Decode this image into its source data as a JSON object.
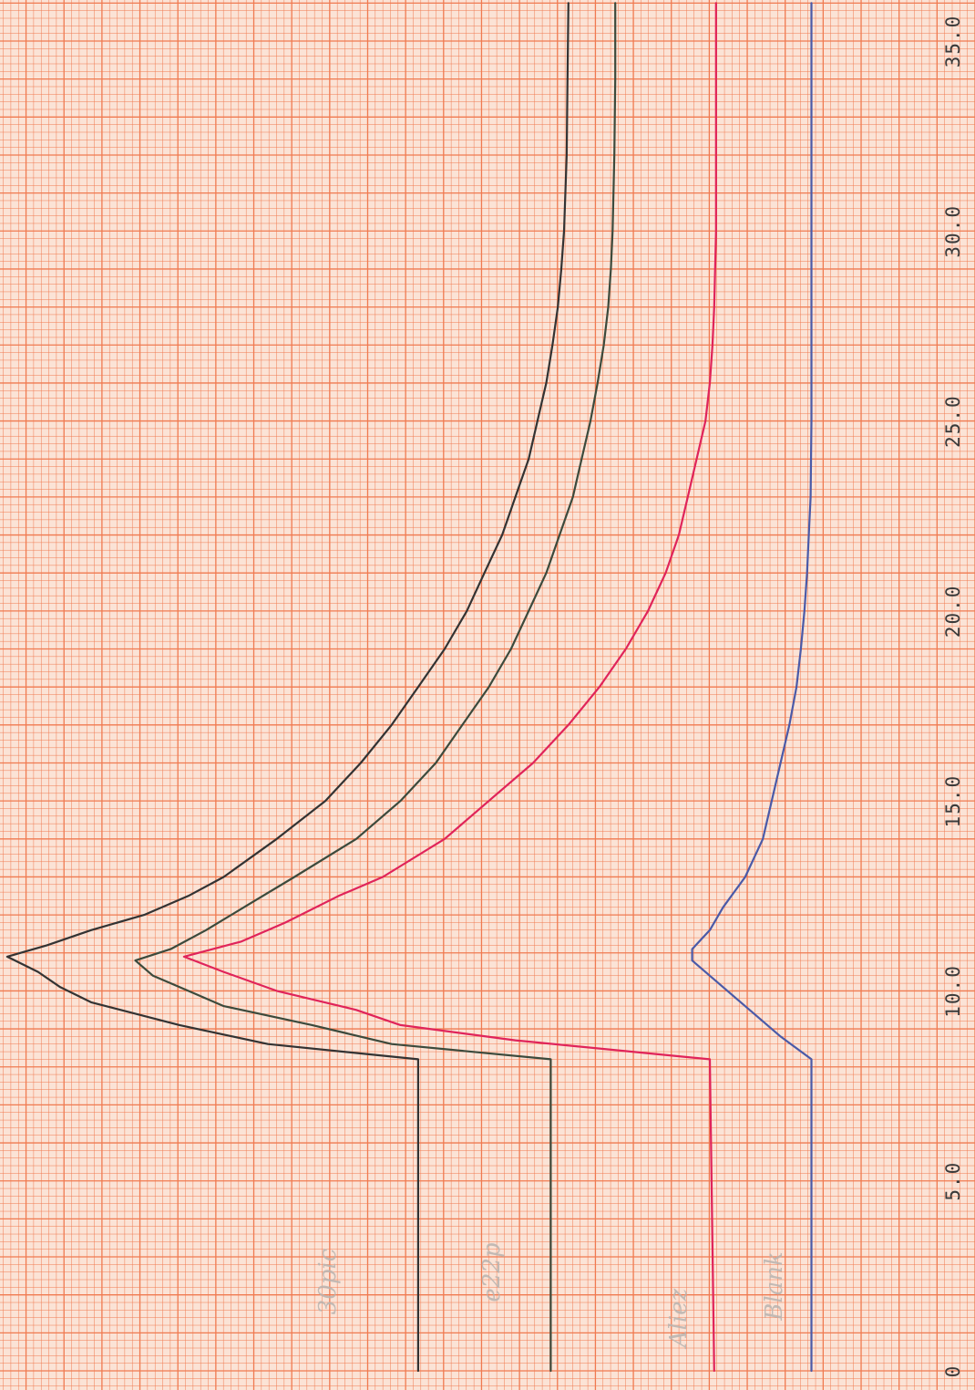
{
  "chart_data": {
    "type": "line",
    "title": "",
    "xlabel": "",
    "ylabel": "",
    "orientation": "rotated-90 (time axis runs bottom to top, ticks printed along right edge)",
    "xlim": [
      0,
      36
    ],
    "ylim": [
      0,
      11
    ],
    "grid": true,
    "grid_color": "#f07a50",
    "paper_color": "#fbe3d6",
    "tick_values": [
      0,
      5,
      10,
      15,
      20,
      25,
      30,
      35
    ],
    "tick_labels": [
      "0",
      "5.0",
      "10.0",
      "15.0",
      "20.0",
      "25.0",
      "30.0",
      "35.0"
    ],
    "series": [
      {
        "name": "30pic",
        "color": "#333333",
        "points": [
          [
            0,
            6.3
          ],
          [
            5,
            6.3
          ],
          [
            8.2,
            6.3
          ],
          [
            8.6,
            8.0
          ],
          [
            9.1,
            9.0
          ],
          [
            9.7,
            10.0
          ],
          [
            10.1,
            10.35
          ],
          [
            10.5,
            10.6
          ],
          [
            10.9,
            10.95
          ],
          [
            11.2,
            10.5
          ],
          [
            11.6,
            10.0
          ],
          [
            12.0,
            9.4
          ],
          [
            12.5,
            8.9
          ],
          [
            13,
            8.5
          ],
          [
            14,
            7.9
          ],
          [
            15,
            7.35
          ],
          [
            16,
            6.95
          ],
          [
            17,
            6.6
          ],
          [
            18,
            6.3
          ],
          [
            19,
            6.0
          ],
          [
            20,
            5.75
          ],
          [
            21,
            5.55
          ],
          [
            22,
            5.35
          ],
          [
            23,
            5.2
          ],
          [
            24,
            5.05
          ],
          [
            25,
            4.95
          ],
          [
            26,
            4.85
          ],
          [
            27,
            4.78
          ],
          [
            28,
            4.72
          ],
          [
            29,
            4.68
          ],
          [
            30,
            4.65
          ],
          [
            32,
            4.62
          ],
          [
            34,
            4.61
          ],
          [
            36,
            4.6
          ]
        ]
      },
      {
        "name": "e22p",
        "color": "#3c4a3c",
        "points": [
          [
            0,
            4.8
          ],
          [
            5,
            4.8
          ],
          [
            8.2,
            4.8
          ],
          [
            8.6,
            6.6
          ],
          [
            9.1,
            7.5
          ],
          [
            9.6,
            8.5
          ],
          [
            10.0,
            8.9
          ],
          [
            10.4,
            9.3
          ],
          [
            10.8,
            9.5
          ],
          [
            11.1,
            9.1
          ],
          [
            11.6,
            8.7
          ],
          [
            12.3,
            8.2
          ],
          [
            13,
            7.7
          ],
          [
            14,
            7.0
          ],
          [
            15,
            6.5
          ],
          [
            16,
            6.1
          ],
          [
            17,
            5.8
          ],
          [
            18,
            5.5
          ],
          [
            19,
            5.25
          ],
          [
            20,
            5.05
          ],
          [
            21,
            4.85
          ],
          [
            22,
            4.7
          ],
          [
            23,
            4.55
          ],
          [
            24,
            4.45
          ],
          [
            25,
            4.35
          ],
          [
            26,
            4.27
          ],
          [
            27,
            4.2
          ],
          [
            28,
            4.15
          ],
          [
            29,
            4.12
          ],
          [
            30,
            4.1
          ],
          [
            32,
            4.08
          ],
          [
            34,
            4.07
          ],
          [
            36,
            4.07
          ]
        ]
      },
      {
        "name": "Aliez",
        "color": "#e0245a",
        "points": [
          [
            0,
            2.95
          ],
          [
            5,
            2.98
          ],
          [
            8.2,
            3.0
          ],
          [
            8.7,
            5.2
          ],
          [
            9.1,
            6.5
          ],
          [
            9.5,
            7.0
          ],
          [
            10.0,
            7.9
          ],
          [
            10.5,
            8.5
          ],
          [
            10.9,
            8.95
          ],
          [
            11.3,
            8.3
          ],
          [
            11.8,
            7.8
          ],
          [
            12.5,
            7.2
          ],
          [
            13,
            6.7
          ],
          [
            14,
            6.0
          ],
          [
            15,
            5.5
          ],
          [
            16,
            5.0
          ],
          [
            17,
            4.6
          ],
          [
            18,
            4.25
          ],
          [
            19,
            3.95
          ],
          [
            20,
            3.7
          ],
          [
            21,
            3.5
          ],
          [
            22,
            3.35
          ],
          [
            23,
            3.25
          ],
          [
            24,
            3.15
          ],
          [
            25,
            3.05
          ],
          [
            26,
            3.0
          ],
          [
            27,
            2.97
          ],
          [
            28,
            2.95
          ],
          [
            30,
            2.93
          ],
          [
            32,
            2.93
          ],
          [
            34,
            2.93
          ],
          [
            36,
            2.93
          ]
        ]
      },
      {
        "name": "Blank",
        "color": "#4a5aa8",
        "points": [
          [
            0,
            1.85
          ],
          [
            5,
            1.85
          ],
          [
            8.2,
            1.85
          ],
          [
            8.8,
            2.2
          ],
          [
            9.4,
            2.5
          ],
          [
            9.8,
            2.7
          ],
          [
            10.3,
            2.95
          ],
          [
            10.8,
            3.2
          ],
          [
            11.1,
            3.2
          ],
          [
            11.6,
            3.0
          ],
          [
            12.2,
            2.85
          ],
          [
            13,
            2.6
          ],
          [
            14,
            2.4
          ],
          [
            15,
            2.3
          ],
          [
            16,
            2.2
          ],
          [
            17,
            2.1
          ],
          [
            18,
            2.02
          ],
          [
            19,
            1.97
          ],
          [
            20,
            1.93
          ],
          [
            21,
            1.9
          ],
          [
            22,
            1.88
          ],
          [
            23,
            1.86
          ],
          [
            25,
            1.85
          ],
          [
            30,
            1.85
          ],
          [
            36,
            1.85
          ]
        ]
      }
    ],
    "annotations": [
      "30pic",
      "e22p",
      "Aliez",
      "Blank"
    ]
  }
}
